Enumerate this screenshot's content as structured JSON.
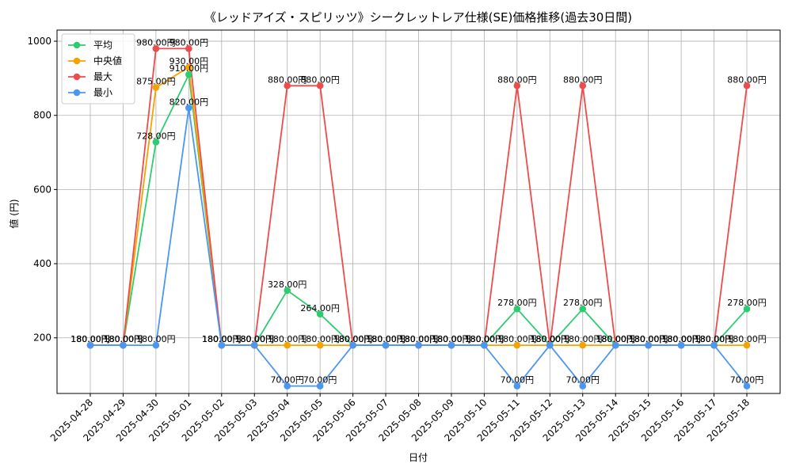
{
  "chart_data": {
    "type": "line",
    "title": "《レッドアイズ・スピリッツ》シークレットレア仕様(SE)価格推移(過去30日間)",
    "xlabel": "日付",
    "ylabel": "値 (円)",
    "ylim": [
      50,
      1030
    ],
    "yticks": [
      200,
      400,
      600,
      800,
      1000
    ],
    "grid": true,
    "legend_position": "top-left",
    "label_suffix": "円",
    "categories": [
      "2025-04-28",
      "2025-04-29",
      "2025-04-30",
      "2025-05-01",
      "2025-05-02",
      "2025-05-03",
      "2025-05-04",
      "2025-05-05",
      "2025-05-06",
      "2025-05-07",
      "2025-05-08",
      "2025-05-09",
      "2025-05-10",
      "2025-05-11",
      "2025-05-12",
      "2025-05-13",
      "2025-05-14",
      "2025-05-15",
      "2025-05-16",
      "2025-05-17",
      "2025-05-18"
    ],
    "series": [
      {
        "name": "平均",
        "color": "#2ecc71",
        "values": [
          180,
          180,
          728,
          910,
          180,
          180,
          328,
          264,
          180,
          180,
          180,
          180,
          180,
          278,
          180,
          278,
          180,
          180,
          180,
          180,
          278
        ]
      },
      {
        "name": "中央値",
        "color": "#f5a300",
        "values": [
          180,
          180,
          875,
          930,
          180,
          180,
          180,
          180,
          180,
          180,
          180,
          180,
          180,
          180,
          180,
          180,
          180,
          180,
          180,
          180,
          180
        ]
      },
      {
        "name": "最大",
        "color": "#ee4b4b",
        "values": [
          180,
          180,
          980,
          980,
          180,
          180,
          880,
          880,
          180,
          180,
          180,
          180,
          180,
          880,
          180,
          880,
          180,
          180,
          180,
          180,
          880
        ]
      },
      {
        "name": "最小",
        "color": "#4b96f0",
        "values": [
          180,
          180,
          180,
          820,
          180,
          180,
          70,
          70,
          180,
          180,
          180,
          180,
          180,
          70,
          180,
          70,
          180,
          180,
          180,
          180,
          70
        ]
      }
    ]
  }
}
